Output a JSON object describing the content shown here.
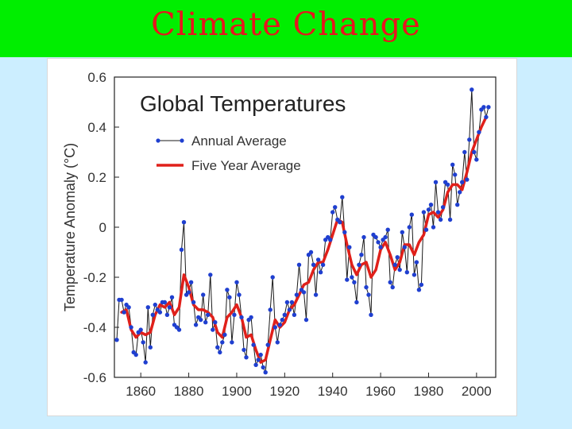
{
  "slide": {
    "title": "Climate Change"
  },
  "colors": {
    "title_bar": "#00ee00",
    "title_text": "#e8141e",
    "annual_line": "#1a1a1a",
    "annual_marker": "#1f3fd0",
    "five_year": "#e0201a",
    "background": "#cceeff"
  },
  "chart_data": {
    "type": "line",
    "title": "Global Temperatures",
    "xlabel": "",
    "ylabel": "Temperature Anomaly (°C)",
    "xlim": [
      1849,
      2008
    ],
    "ylim": [
      -0.6,
      0.6
    ],
    "xticks": [
      1860,
      1880,
      1900,
      1920,
      1940,
      1960,
      1980,
      2000
    ],
    "yticks": [
      {
        "value": 0.6,
        "label": "0.6"
      },
      {
        "value": 0.4,
        "label": "0.4"
      },
      {
        "value": 0.2,
        "label": "0.2"
      },
      {
        "value": 0,
        "label": "0"
      },
      {
        "value": -0.2,
        "label": "-0.2"
      },
      {
        "value": -0.4,
        "label": "-0.4"
      },
      {
        "value": -0.6,
        "label": "-0.6"
      }
    ],
    "legend": {
      "position": "top-left",
      "entries": [
        "Annual Average",
        "Five Year Average"
      ]
    },
    "series": [
      {
        "name": "Annual Average",
        "style": "line-markers",
        "x": [
          1850,
          1851,
          1852,
          1853,
          1854,
          1855,
          1856,
          1857,
          1858,
          1859,
          1860,
          1861,
          1862,
          1863,
          1864,
          1865,
          1866,
          1867,
          1868,
          1869,
          1870,
          1871,
          1872,
          1873,
          1874,
          1875,
          1876,
          1877,
          1878,
          1879,
          1880,
          1881,
          1882,
          1883,
          1884,
          1885,
          1886,
          1887,
          1888,
          1889,
          1890,
          1891,
          1892,
          1893,
          1894,
          1895,
          1896,
          1897,
          1898,
          1899,
          1900,
          1901,
          1902,
          1903,
          1904,
          1905,
          1906,
          1907,
          1908,
          1909,
          1910,
          1911,
          1912,
          1913,
          1914,
          1915,
          1916,
          1917,
          1918,
          1919,
          1920,
          1921,
          1922,
          1923,
          1924,
          1925,
          1926,
          1927,
          1928,
          1929,
          1930,
          1931,
          1932,
          1933,
          1934,
          1935,
          1936,
          1937,
          1938,
          1939,
          1940,
          1941,
          1942,
          1943,
          1944,
          1945,
          1946,
          1947,
          1948,
          1949,
          1950,
          1951,
          1952,
          1953,
          1954,
          1955,
          1956,
          1957,
          1958,
          1959,
          1960,
          1961,
          1962,
          1963,
          1964,
          1965,
          1966,
          1967,
          1968,
          1969,
          1970,
          1971,
          1972,
          1973,
          1974,
          1975,
          1976,
          1977,
          1978,
          1979,
          1980,
          1981,
          1982,
          1983,
          1984,
          1985,
          1986,
          1987,
          1988,
          1989,
          1990,
          1991,
          1992,
          1993,
          1994,
          1995,
          1996,
          1997,
          1998,
          1999,
          2000,
          2001,
          2002,
          2003,
          2004,
          2005
        ],
        "values": [
          -0.45,
          -0.29,
          -0.29,
          -0.34,
          -0.31,
          -0.32,
          -0.4,
          -0.5,
          -0.51,
          -0.42,
          -0.41,
          -0.46,
          -0.54,
          -0.32,
          -0.48,
          -0.35,
          -0.31,
          -0.33,
          -0.34,
          -0.3,
          -0.3,
          -0.35,
          -0.32,
          -0.28,
          -0.39,
          -0.4,
          -0.41,
          -0.09,
          0.02,
          -0.27,
          -0.26,
          -0.22,
          -0.3,
          -0.39,
          -0.36,
          -0.37,
          -0.27,
          -0.38,
          -0.35,
          -0.19,
          -0.41,
          -0.38,
          -0.48,
          -0.5,
          -0.46,
          -0.43,
          -0.25,
          -0.28,
          -0.46,
          -0.35,
          -0.22,
          -0.27,
          -0.36,
          -0.49,
          -0.52,
          -0.37,
          -0.36,
          -0.47,
          -0.55,
          -0.53,
          -0.51,
          -0.56,
          -0.58,
          -0.47,
          -0.33,
          -0.2,
          -0.4,
          -0.46,
          -0.39,
          -0.37,
          -0.35,
          -0.3,
          -0.33,
          -0.3,
          -0.35,
          -0.27,
          -0.15,
          -0.25,
          -0.26,
          -0.37,
          -0.11,
          -0.1,
          -0.15,
          -0.27,
          -0.13,
          -0.18,
          -0.15,
          -0.05,
          -0.04,
          -0.05,
          0.06,
          0.08,
          0.03,
          0.02,
          0.12,
          -0.02,
          -0.21,
          -0.08,
          -0.2,
          -0.22,
          -0.3,
          -0.15,
          -0.11,
          -0.04,
          -0.24,
          -0.27,
          -0.35,
          -0.03,
          -0.04,
          -0.06,
          -0.08,
          -0.05,
          -0.04,
          -0.01,
          -0.22,
          -0.24,
          -0.15,
          -0.12,
          -0.17,
          -0.02,
          -0.08,
          -0.18,
          0.0,
          0.05,
          -0.19,
          -0.14,
          -0.25,
          -0.23,
          0.06,
          -0.01,
          0.07,
          0.09,
          0.0,
          0.18,
          0.06,
          0.03,
          0.08,
          0.18,
          0.17,
          0.03,
          0.25,
          0.21,
          0.09,
          0.14,
          0.18,
          0.3,
          0.19,
          0.35,
          0.55,
          0.3,
          0.27,
          0.38,
          0.47,
          0.48,
          0.44,
          0.48
        ]
      },
      {
        "name": "Five Year Average",
        "style": "line",
        "x": [
          1852,
          1854,
          1856,
          1858,
          1860,
          1862,
          1864,
          1866,
          1868,
          1870,
          1872,
          1874,
          1876,
          1878,
          1880,
          1882,
          1884,
          1886,
          1888,
          1890,
          1892,
          1894,
          1896,
          1898,
          1900,
          1902,
          1904,
          1906,
          1908,
          1910,
          1912,
          1914,
          1916,
          1918,
          1920,
          1922,
          1924,
          1926,
          1928,
          1930,
          1932,
          1934,
          1936,
          1938,
          1940,
          1942,
          1944,
          1946,
          1948,
          1950,
          1952,
          1954,
          1956,
          1958,
          1960,
          1962,
          1964,
          1966,
          1968,
          1970,
          1972,
          1974,
          1976,
          1978,
          1980,
          1982,
          1984,
          1986,
          1988,
          1990,
          1992,
          1994,
          1996,
          1998,
          2000,
          2002,
          2004
        ],
        "values": [
          -0.34,
          -0.33,
          -0.41,
          -0.44,
          -0.42,
          -0.43,
          -0.42,
          -0.35,
          -0.31,
          -0.32,
          -0.3,
          -0.35,
          -0.32,
          -0.19,
          -0.24,
          -0.31,
          -0.33,
          -0.33,
          -0.34,
          -0.36,
          -0.42,
          -0.44,
          -0.36,
          -0.34,
          -0.31,
          -0.36,
          -0.44,
          -0.43,
          -0.49,
          -0.54,
          -0.53,
          -0.45,
          -0.37,
          -0.4,
          -0.38,
          -0.33,
          -0.31,
          -0.27,
          -0.23,
          -0.22,
          -0.17,
          -0.14,
          -0.14,
          -0.09,
          -0.03,
          0.03,
          0.02,
          -0.07,
          -0.15,
          -0.19,
          -0.15,
          -0.14,
          -0.2,
          -0.17,
          -0.09,
          -0.06,
          -0.11,
          -0.17,
          -0.14,
          -0.07,
          -0.07,
          -0.11,
          -0.06,
          -0.03,
          0.05,
          0.06,
          0.04,
          0.07,
          0.14,
          0.17,
          0.17,
          0.15,
          0.22,
          0.3,
          0.35,
          0.4,
          0.44
        ]
      }
    ]
  }
}
